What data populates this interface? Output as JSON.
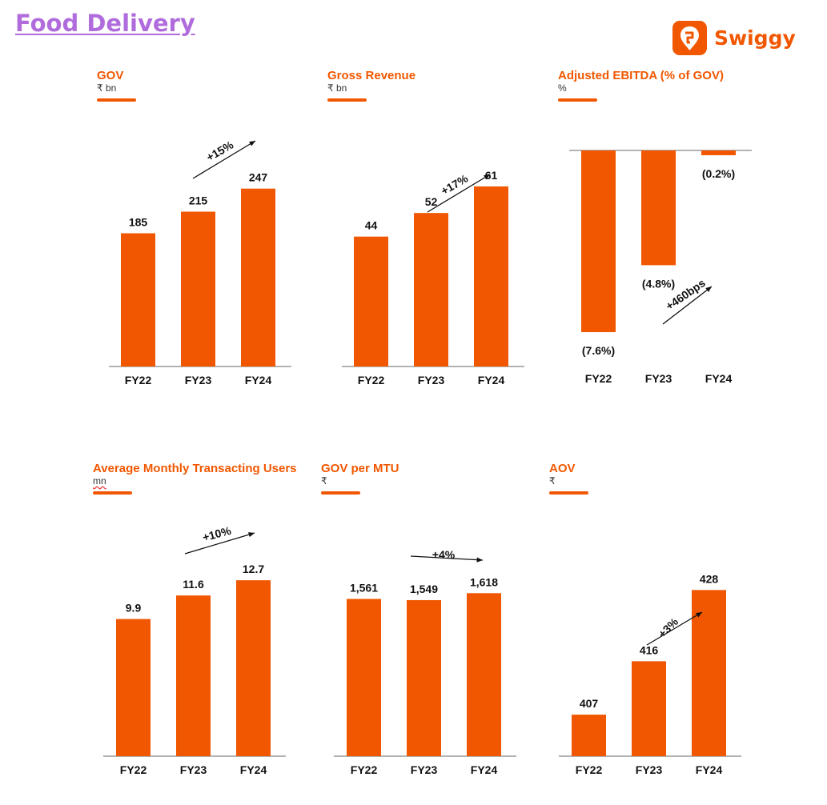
{
  "page": {
    "title": "Food Delivery"
  },
  "logo": {
    "text": "Swiggy"
  },
  "colors": {
    "bar": "#f15700",
    "accent": "#f15700",
    "axis": "#999999",
    "text": "#111111"
  },
  "chart_data": [
    {
      "type": "bar",
      "title": "GOV",
      "unit": "₹ bn",
      "categories": [
        "FY22",
        "FY23",
        "FY24"
      ],
      "values": [
        185,
        215,
        247
      ],
      "value_labels": [
        "185",
        "215",
        "247"
      ],
      "ylim": [
        0,
        320
      ],
      "annotation": "+15%"
    },
    {
      "type": "bar",
      "title": "Gross Revenue",
      "unit": "₹ bn",
      "categories": [
        "FY22",
        "FY23",
        "FY24"
      ],
      "values": [
        44,
        52,
        61
      ],
      "value_labels": [
        "44",
        "52",
        "61"
      ],
      "ylim": [
        0,
        74
      ],
      "annotation": "+17%"
    },
    {
      "type": "bar",
      "title": "Adjusted EBITDA (% of GOV)",
      "unit": "%",
      "categories": [
        "FY22",
        "FY23",
        "FY24"
      ],
      "values": [
        -7.6,
        -4.8,
        -0.2
      ],
      "value_labels": [
        "(7.6%)",
        "(4.8%)",
        "(0.2%)"
      ],
      "ylim": [
        -8,
        0
      ],
      "annotation": "+460bps"
    },
    {
      "type": "bar",
      "title": "Average Monthly Transacting Users",
      "unit": "mn",
      "categories": [
        "FY22",
        "FY23",
        "FY24"
      ],
      "values": [
        9.9,
        11.6,
        12.7
      ],
      "value_labels": [
        "9.9",
        "11.6",
        "12.7"
      ],
      "ylim": [
        0,
        16
      ],
      "annotation": "+10%"
    },
    {
      "type": "bar",
      "title": "GOV per MTU",
      "unit": "₹",
      "categories": [
        "FY22",
        "FY23",
        "FY24"
      ],
      "values": [
        1561,
        1549,
        1618
      ],
      "value_labels": [
        "1,561",
        "1,549",
        "1,618"
      ],
      "ylim": [
        0,
        2200
      ],
      "annotation": "+4%"
    },
    {
      "type": "bar",
      "title": "AOV",
      "unit": "₹",
      "categories": [
        "FY22",
        "FY23",
        "FY24"
      ],
      "values": [
        407,
        416,
        428
      ],
      "value_labels": [
        "407",
        "416",
        "428"
      ],
      "ylim": [
        400,
        436
      ],
      "annotation": "+3%"
    }
  ]
}
